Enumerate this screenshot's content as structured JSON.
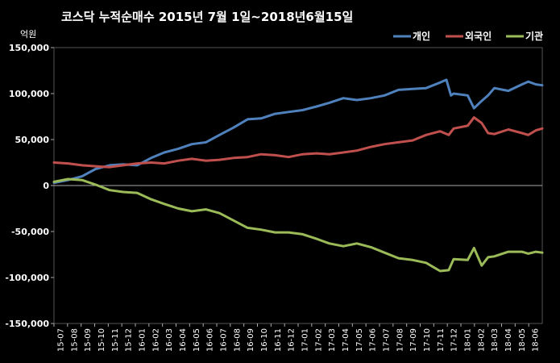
{
  "chart_data": {
    "type": "line",
    "title": "코스닥  누적순매수 2015년 7월 1일~2018년6월15일",
    "unit_label": "억원",
    "ylim": [
      -150000,
      150000
    ],
    "yticks": [
      150000,
      100000,
      50000,
      0,
      -50000,
      -100000,
      -150000
    ],
    "ytick_labels": [
      "150,000",
      "100,000",
      "50,000",
      "0",
      "-50,000",
      "-100,000",
      "-150,000"
    ],
    "x_range": [
      "2015-07-01",
      "2018-06-15"
    ],
    "xtick_labels": [
      "15-07",
      "15-08",
      "15-09",
      "15-10",
      "15-11",
      "15-12",
      "16-01",
      "16-02",
      "16-03",
      "16-04",
      "16-05",
      "16-06",
      "16-07",
      "16-08",
      "16-09",
      "16-10",
      "16-11",
      "16-12",
      "17-01",
      "17-02",
      "17-03",
      "17-04",
      "17-05",
      "17-06",
      "17-07",
      "17-08",
      "17-09",
      "17-10",
      "17-11",
      "17-12",
      "18-01",
      "18-02",
      "18-03",
      "18-04",
      "18-05",
      "18-06"
    ],
    "grid": false,
    "background": "#000000",
    "plot_border_color": "#555555",
    "legend_position": "top-right",
    "series": [
      {
        "name": "개인",
        "color": "#4F81BD",
        "points": [
          [
            "2015-07-01",
            3000
          ],
          [
            "2015-08-01",
            6000
          ],
          [
            "2015-09-01",
            10000
          ],
          [
            "2015-10-01",
            18000
          ],
          [
            "2015-11-01",
            22000
          ],
          [
            "2015-12-01",
            23000
          ],
          [
            "2016-01-01",
            22000
          ],
          [
            "2016-02-01",
            30000
          ],
          [
            "2016-03-01",
            36000
          ],
          [
            "2016-04-01",
            40000
          ],
          [
            "2016-05-01",
            45000
          ],
          [
            "2016-06-01",
            47000
          ],
          [
            "2016-07-01",
            55000
          ],
          [
            "2016-08-01",
            63000
          ],
          [
            "2016-09-01",
            72000
          ],
          [
            "2016-10-01",
            73000
          ],
          [
            "2016-11-01",
            78000
          ],
          [
            "2016-12-01",
            80000
          ],
          [
            "2017-01-01",
            82000
          ],
          [
            "2017-02-01",
            86000
          ],
          [
            "2017-03-01",
            90000
          ],
          [
            "2017-04-01",
            95000
          ],
          [
            "2017-05-01",
            93000
          ],
          [
            "2017-06-01",
            95000
          ],
          [
            "2017-07-01",
            98000
          ],
          [
            "2017-08-01",
            104000
          ],
          [
            "2017-09-01",
            105000
          ],
          [
            "2017-10-01",
            106000
          ],
          [
            "2017-11-01",
            112000
          ],
          [
            "2017-11-15",
            115000
          ],
          [
            "2017-11-25",
            98000
          ],
          [
            "2017-12-01",
            100000
          ],
          [
            "2018-01-01",
            98000
          ],
          [
            "2018-01-15",
            84000
          ],
          [
            "2018-02-01",
            92000
          ],
          [
            "2018-02-15",
            98000
          ],
          [
            "2018-03-01",
            106000
          ],
          [
            "2018-04-01",
            103000
          ],
          [
            "2018-05-01",
            110000
          ],
          [
            "2018-05-15",
            113000
          ],
          [
            "2018-06-01",
            110000
          ],
          [
            "2018-06-15",
            109000
          ]
        ]
      },
      {
        "name": "외국인",
        "color": "#C0504D",
        "points": [
          [
            "2015-07-01",
            25000
          ],
          [
            "2015-08-01",
            24000
          ],
          [
            "2015-09-01",
            22000
          ],
          [
            "2015-10-01",
            21000
          ],
          [
            "2015-11-01",
            20000
          ],
          [
            "2015-12-01",
            22000
          ],
          [
            "2016-01-01",
            24000
          ],
          [
            "2016-02-01",
            25000
          ],
          [
            "2016-03-01",
            24000
          ],
          [
            "2016-04-01",
            27000
          ],
          [
            "2016-05-01",
            29000
          ],
          [
            "2016-06-01",
            27000
          ],
          [
            "2016-07-01",
            28000
          ],
          [
            "2016-08-01",
            30000
          ],
          [
            "2016-09-01",
            31000
          ],
          [
            "2016-10-01",
            34000
          ],
          [
            "2016-11-01",
            33000
          ],
          [
            "2016-12-01",
            31000
          ],
          [
            "2017-01-01",
            34000
          ],
          [
            "2017-02-01",
            35000
          ],
          [
            "2017-03-01",
            34000
          ],
          [
            "2017-04-01",
            36000
          ],
          [
            "2017-05-01",
            38000
          ],
          [
            "2017-06-01",
            42000
          ],
          [
            "2017-07-01",
            45000
          ],
          [
            "2017-08-01",
            47000
          ],
          [
            "2017-09-01",
            49000
          ],
          [
            "2017-10-01",
            55000
          ],
          [
            "2017-11-01",
            59000
          ],
          [
            "2017-11-20",
            55000
          ],
          [
            "2017-12-01",
            62000
          ],
          [
            "2018-01-01",
            65000
          ],
          [
            "2018-01-15",
            74000
          ],
          [
            "2018-02-01",
            68000
          ],
          [
            "2018-02-15",
            57000
          ],
          [
            "2018-03-01",
            56000
          ],
          [
            "2018-04-01",
            61000
          ],
          [
            "2018-05-01",
            57000
          ],
          [
            "2018-05-15",
            55000
          ],
          [
            "2018-06-01",
            60000
          ],
          [
            "2018-06-15",
            62000
          ]
        ]
      },
      {
        "name": "기관",
        "color": "#9BBB59",
        "points": [
          [
            "2015-07-01",
            4000
          ],
          [
            "2015-08-01",
            7000
          ],
          [
            "2015-09-01",
            6000
          ],
          [
            "2015-10-01",
            1000
          ],
          [
            "2015-11-01",
            -5000
          ],
          [
            "2015-12-01",
            -7000
          ],
          [
            "2016-01-01",
            -8000
          ],
          [
            "2016-02-01",
            -15000
          ],
          [
            "2016-03-01",
            -20000
          ],
          [
            "2016-04-01",
            -25000
          ],
          [
            "2016-05-01",
            -28000
          ],
          [
            "2016-06-01",
            -26000
          ],
          [
            "2016-07-01",
            -30000
          ],
          [
            "2016-08-01",
            -38000
          ],
          [
            "2016-09-01",
            -46000
          ],
          [
            "2016-10-01",
            -48000
          ],
          [
            "2016-11-01",
            -51000
          ],
          [
            "2016-12-01",
            -51000
          ],
          [
            "2017-01-01",
            -53000
          ],
          [
            "2017-02-01",
            -58000
          ],
          [
            "2017-03-01",
            -63000
          ],
          [
            "2017-04-01",
            -66000
          ],
          [
            "2017-05-01",
            -63000
          ],
          [
            "2017-06-01",
            -67000
          ],
          [
            "2017-07-01",
            -73000
          ],
          [
            "2017-08-01",
            -79000
          ],
          [
            "2017-09-01",
            -81000
          ],
          [
            "2017-10-01",
            -84000
          ],
          [
            "2017-11-01",
            -93000
          ],
          [
            "2017-11-20",
            -92000
          ],
          [
            "2017-12-01",
            -80000
          ],
          [
            "2018-01-01",
            -81000
          ],
          [
            "2018-01-15",
            -68000
          ],
          [
            "2018-02-01",
            -87000
          ],
          [
            "2018-02-15",
            -78000
          ],
          [
            "2018-03-01",
            -77000
          ],
          [
            "2018-04-01",
            -72000
          ],
          [
            "2018-05-01",
            -72000
          ],
          [
            "2018-05-15",
            -74000
          ],
          [
            "2018-06-01",
            -72000
          ],
          [
            "2018-06-15",
            -73000
          ]
        ]
      }
    ]
  }
}
